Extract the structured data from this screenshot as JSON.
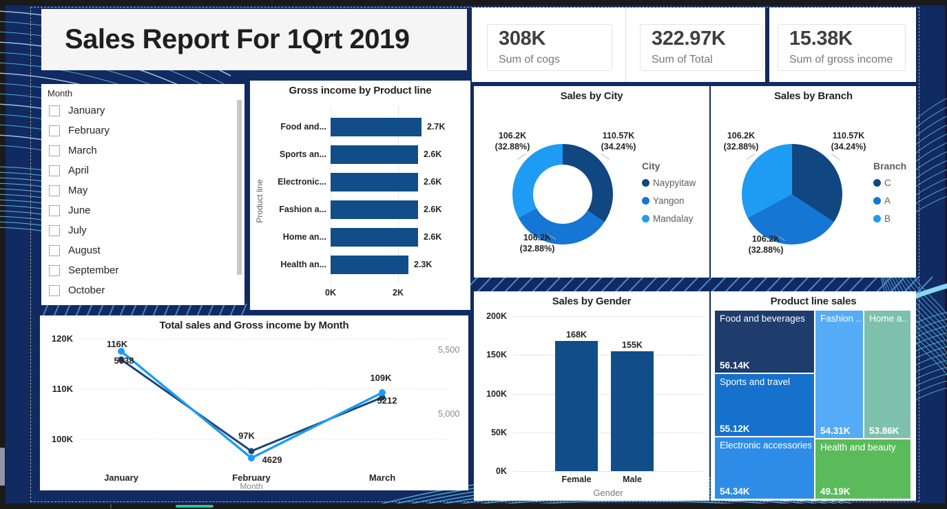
{
  "app": {
    "title": "Sales Report For 1Qrt 2019"
  },
  "kpis": [
    {
      "value": "308K",
      "label": "Sum of cogs"
    },
    {
      "value": "322.97K",
      "label": "Sum of Total"
    },
    {
      "value": "15.38K",
      "label": "Sum of gross income"
    }
  ],
  "slicer": {
    "header": "Month",
    "months": [
      "January",
      "February",
      "March",
      "April",
      "May",
      "June",
      "July",
      "August",
      "September",
      "October"
    ],
    "partial_item": true,
    "checked": [
      false,
      false,
      false,
      false,
      false,
      false,
      false,
      false,
      false,
      false
    ]
  },
  "colors": {
    "page_background": "#112A61",
    "series_dark": "#114780",
    "series_medium": "#1676D3",
    "series_light": "#1E9BF2",
    "bar_blue": "#114D88",
    "line_light": "#1E9BF2",
    "line_dark": "#1B4576",
    "accent_teal": "#2FC0AE"
  },
  "chart_data": [
    {
      "type": "bar",
      "orientation": "horizontal",
      "title": "Gross income by Product line",
      "ylabel": "Product line",
      "categories": [
        "Food and...",
        "Sports an...",
        "Electronic...",
        "Fashion a...",
        "Home an...",
        "Health an..."
      ],
      "values": [
        2.7,
        2.6,
        2.6,
        2.6,
        2.6,
        2.3
      ],
      "value_labels": [
        "2.7K",
        "2.6K",
        "2.6K",
        "2.6K",
        "2.6K",
        "2.3K"
      ],
      "x_ticks": [
        "0K",
        "2K"
      ],
      "xlim": [
        0,
        3.67
      ],
      "grid": true,
      "bar_color": "#114D88"
    },
    {
      "type": "pie",
      "subtype": "donut",
      "title": "Sales by City",
      "legend_title": "City",
      "legend_position": "right",
      "labels": [
        "Naypyitaw",
        "Yangon",
        "Mandalay"
      ],
      "values": [
        110.57,
        106.2,
        106.2
      ],
      "percents": [
        34.24,
        32.88,
        32.88
      ],
      "value_texts": [
        "110.57K",
        "106.2K",
        "106.2K"
      ],
      "percent_texts": [
        "(34.24%)",
        "(32.88%)",
        "(32.88%)"
      ],
      "colors": [
        "#114780",
        "#1676D3",
        "#1E9BF2"
      ]
    },
    {
      "type": "pie",
      "subtype": "pie",
      "title": "Sales by Branch",
      "legend_title": "Branch",
      "legend_position": "right",
      "labels": [
        "C",
        "A",
        "B"
      ],
      "values": [
        110.57,
        106.2,
        106.2
      ],
      "percents": [
        34.24,
        32.88,
        32.88
      ],
      "value_texts": [
        "110.57K",
        "106.2K",
        "106.2K"
      ],
      "percent_texts": [
        "(34.24%)",
        "(32.88%)",
        "(32.88%)"
      ],
      "colors": [
        "#114780",
        "#1676D3",
        "#1E9BF2"
      ]
    },
    {
      "type": "line",
      "title": "Total sales and Gross income by Month",
      "xlabel": "Month",
      "x": [
        "January",
        "February",
        "March"
      ],
      "series": [
        {
          "name": "Total sales",
          "axis": "left",
          "values": [
            116000,
            97000,
            109000
          ],
          "labels": [
            "116K",
            "97K",
            "109K"
          ],
          "color": "#1E9BF2"
        },
        {
          "name": "Gross income",
          "axis": "right",
          "values": [
            5538,
            4629,
            5212
          ],
          "labels": [
            "5538",
            "4629",
            "5212"
          ],
          "color": "#1B4576"
        }
      ],
      "left_ticks": [
        "120K",
        "110K",
        "100K"
      ],
      "right_ticks": [
        "5,500",
        "5,000"
      ],
      "grid": true
    },
    {
      "type": "bar",
      "orientation": "vertical",
      "title": "Sales by Gender",
      "xlabel": "Gender",
      "categories": [
        "Female",
        "Male"
      ],
      "values": [
        168,
        155
      ],
      "value_labels": [
        "168K",
        "155K"
      ],
      "y_ticks": [
        "200K",
        "150K",
        "100K",
        "50K",
        "0K"
      ],
      "ylim": [
        0,
        200
      ],
      "grid": true,
      "bar_color": "#114D88"
    },
    {
      "type": "treemap",
      "title": "Product line sales",
      "items": [
        {
          "name": "Food and beverages",
          "value": "56.14K",
          "color": "#1E3C6C"
        },
        {
          "name": "Sports and travel",
          "value": "55.12K",
          "color": "#1571CB"
        },
        {
          "name": "Electronic accessories",
          "value": "54.34K",
          "color": "#2E8CE9"
        },
        {
          "name": "Fashion ...",
          "value": "54.31K",
          "color": "#55ABF5"
        },
        {
          "name": "Home a...",
          "value": "53.86K",
          "color": "#7DC1AC"
        },
        {
          "name": "Health and beauty",
          "value": "49.19K",
          "color": "#5BBB5B"
        }
      ]
    }
  ]
}
